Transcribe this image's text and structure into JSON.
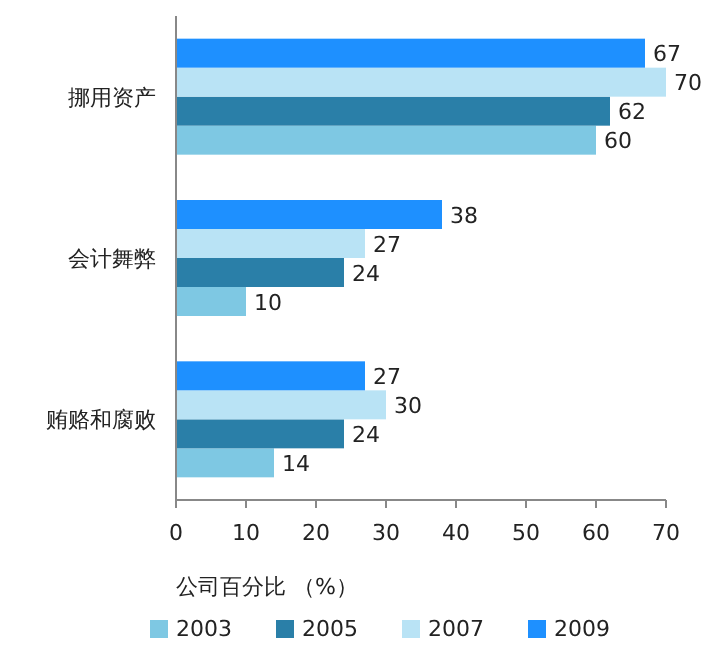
{
  "chart_data": {
    "type": "bar",
    "orientation": "horizontal",
    "categories": [
      "挪用资产",
      "会计舞弊",
      "贿赂和腐败"
    ],
    "series": [
      {
        "name": "2003",
        "color": "#7ec8e3",
        "values": [
          60,
          10,
          14
        ]
      },
      {
        "name": "2005",
        "color": "#2a7fa8",
        "values": [
          62,
          24,
          24
        ]
      },
      {
        "name": "2007",
        "color": "#b9e3f5",
        "values": [
          70,
          27,
          30
        ]
      },
      {
        "name": "2009",
        "color": "#1e90ff",
        "values": [
          67,
          38,
          27
        ]
      }
    ],
    "xlim": [
      0,
      70
    ],
    "xticks": [
      0,
      10,
      20,
      30,
      40,
      50,
      60,
      70
    ],
    "xlabel": "公司百分比 （%）",
    "legend": "bottom",
    "data_labels": true
  }
}
